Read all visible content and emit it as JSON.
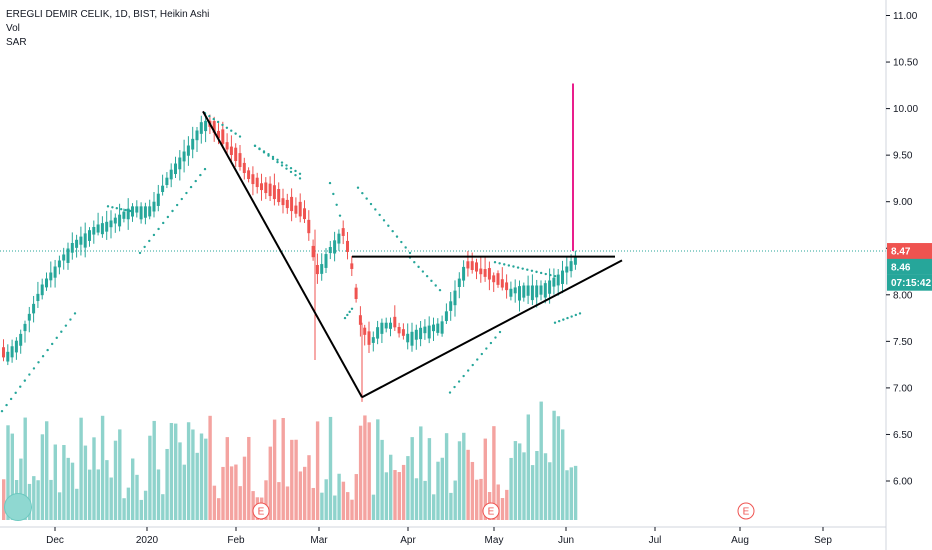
{
  "legend": {
    "title": "EREGLI DEMIR CELIK, 1D, BIST, Heikin Ashi",
    "vol": "Vol",
    "sar": "SAR"
  },
  "colors": {
    "up": "#26a69a",
    "down": "#ef5350",
    "vol_up": "#8fd3cc",
    "vol_down": "#f4a3a0",
    "sar": "#26a69a",
    "spike": "#e91e8c",
    "price_line": "#26a69a",
    "tag_red": "#ef5350",
    "tag_green": "#26a69a",
    "earnings": "#ef5350"
  },
  "chart_data": {
    "type": "candlestick",
    "ylim": [
      5.55,
      11.15
    ],
    "y_ticks": [
      "11.00",
      "10.50",
      "10.00",
      "9.50",
      "9.00",
      "8.50",
      "8.00",
      "7.50",
      "7.00",
      "6.50",
      "6.00"
    ],
    "x_ticks": [
      "Dec",
      "2020",
      "Feb",
      "Mar",
      "Apr",
      "May",
      "Jun",
      "Jul",
      "Aug",
      "Sep"
    ],
    "price_tags": [
      "8.47",
      "8.46",
      "07:15:42"
    ],
    "earnings_label": "E",
    "spike": {
      "low": 8.47,
      "high": 10.27
    },
    "triangle": {
      "upper_line": [
        [
          8.41
        ],
        [
          8.41
        ]
      ],
      "upper_level": 8.41,
      "top_peak": 9.97,
      "bottom_low": 6.9,
      "rising_end": 8.37
    }
  }
}
